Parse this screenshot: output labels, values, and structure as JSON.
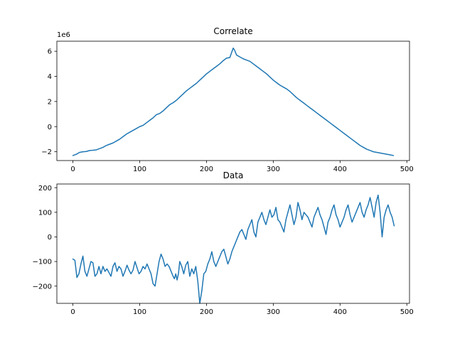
{
  "chart_data": [
    {
      "type": "line",
      "title": "Correlate",
      "xlabel": "",
      "ylabel": "",
      "xlim": [
        -24,
        504
      ],
      "ylim": [
        -2.7,
        6.8
      ],
      "y_scale_label": "1e6",
      "x_ticks": [
        0,
        100,
        200,
        300,
        400,
        500
      ],
      "x_tick_labels": [
        "0",
        "100",
        "200",
        "300",
        "400",
        "500"
      ],
      "y_ticks": [
        -2,
        0,
        2,
        4,
        6
      ],
      "y_tick_labels": [
        "−2",
        "0",
        "2",
        "4",
        "6"
      ],
      "grid": false,
      "color": "#1f77b4",
      "series": [
        {
          "x": [
            0,
            5,
            10,
            15,
            20,
            25,
            30,
            35,
            40,
            45,
            50,
            55,
            60,
            65,
            70,
            75,
            80,
            85,
            90,
            95,
            100,
            105,
            110,
            115,
            120,
            125,
            130,
            135,
            140,
            145,
            150,
            155,
            160,
            165,
            170,
            175,
            180,
            185,
            190,
            195,
            200,
            205,
            210,
            215,
            220,
            225,
            230,
            235,
            238,
            240,
            242,
            245,
            250,
            255,
            260,
            265,
            270,
            275,
            280,
            285,
            290,
            295,
            300,
            305,
            310,
            315,
            320,
            325,
            330,
            335,
            340,
            345,
            350,
            355,
            360,
            365,
            370,
            375,
            380,
            385,
            390,
            395,
            400,
            405,
            410,
            415,
            420,
            425,
            430,
            435,
            440,
            445,
            450,
            455,
            460,
            465,
            470,
            475,
            480
          ],
          "y": [
            -2.3,
            -2.2,
            -2.05,
            -2.0,
            -1.98,
            -1.9,
            -1.88,
            -1.85,
            -1.75,
            -1.65,
            -1.5,
            -1.4,
            -1.3,
            -1.15,
            -1.0,
            -0.8,
            -0.6,
            -0.45,
            -0.3,
            -0.15,
            0.0,
            0.1,
            0.3,
            0.5,
            0.7,
            0.95,
            1.05,
            1.25,
            1.5,
            1.75,
            1.9,
            2.1,
            2.35,
            2.6,
            2.85,
            3.05,
            3.25,
            3.45,
            3.7,
            3.95,
            4.2,
            4.4,
            4.6,
            4.8,
            5.0,
            5.25,
            5.45,
            5.5,
            5.95,
            6.25,
            6.1,
            5.7,
            5.55,
            5.4,
            5.3,
            5.2,
            5.0,
            4.8,
            4.6,
            4.4,
            4.2,
            3.95,
            3.7,
            3.5,
            3.3,
            3.15,
            3.0,
            2.8,
            2.55,
            2.3,
            2.1,
            1.9,
            1.7,
            1.5,
            1.3,
            1.1,
            0.9,
            0.7,
            0.5,
            0.3,
            0.1,
            -0.1,
            -0.3,
            -0.5,
            -0.7,
            -0.9,
            -1.1,
            -1.3,
            -1.5,
            -1.65,
            -1.8,
            -1.9,
            -2.0,
            -2.05,
            -2.1,
            -2.15,
            -2.2,
            -2.25,
            -2.3
          ]
        }
      ]
    },
    {
      "type": "line",
      "title": "Data",
      "xlabel": "",
      "ylabel": "",
      "xlim": [
        -24,
        504
      ],
      "ylim": [
        -270,
        215
      ],
      "x_ticks": [
        0,
        100,
        200,
        300,
        400,
        500
      ],
      "x_tick_labels": [
        "0",
        "100",
        "200",
        "300",
        "400",
        "500"
      ],
      "y_ticks": [
        -200,
        -100,
        0,
        100,
        200
      ],
      "y_tick_labels": [
        "−200",
        "−100",
        "0",
        "100",
        "200"
      ],
      "grid": false,
      "color": "#1f77b4",
      "series": [
        {
          "x": [
            0,
            3,
            6,
            9,
            12,
            15,
            18,
            21,
            24,
            27,
            30,
            33,
            36,
            39,
            42,
            45,
            48,
            51,
            54,
            57,
            60,
            63,
            66,
            69,
            72,
            75,
            78,
            81,
            84,
            87,
            90,
            93,
            96,
            99,
            102,
            105,
            108,
            111,
            114,
            117,
            120,
            123,
            126,
            129,
            132,
            135,
            138,
            141,
            144,
            147,
            150,
            152,
            154,
            156,
            158,
            160,
            163,
            166,
            169,
            172,
            175,
            178,
            181,
            184,
            187,
            190,
            193,
            196,
            199,
            202,
            205,
            208,
            211,
            214,
            217,
            220,
            223,
            226,
            229,
            232,
            235,
            238,
            241,
            244,
            247,
            250,
            253,
            256,
            259,
            262,
            265,
            268,
            271,
            274,
            277,
            280,
            283,
            286,
            289,
            292,
            295,
            298,
            301,
            304,
            307,
            310,
            313,
            316,
            319,
            322,
            325,
            328,
            331,
            334,
            337,
            340,
            343,
            346,
            349,
            352,
            355,
            358,
            361,
            364,
            367,
            370,
            373,
            376,
            379,
            382,
            385,
            388,
            391,
            394,
            397,
            400,
            403,
            406,
            409,
            412,
            415,
            418,
            421,
            424,
            427,
            430,
            433,
            436,
            439,
            442,
            445,
            448,
            451,
            454,
            457,
            460,
            463,
            466,
            469,
            472,
            475,
            478,
            481
          ],
          "y": [
            -90,
            -95,
            -165,
            -150,
            -110,
            -78,
            -140,
            -160,
            -130,
            -100,
            -105,
            -160,
            -150,
            -120,
            -150,
            -120,
            -140,
            -130,
            -145,
            -160,
            -120,
            -105,
            -140,
            -120,
            -130,
            -160,
            -140,
            -115,
            -135,
            -150,
            -135,
            -100,
            -125,
            -150,
            -140,
            -120,
            -130,
            -110,
            -130,
            -150,
            -190,
            -200,
            -150,
            -100,
            -70,
            -90,
            -120,
            -110,
            -120,
            -140,
            -160,
            -170,
            -150,
            -175,
            -150,
            -100,
            -120,
            -150,
            -115,
            -100,
            -160,
            -130,
            -150,
            -120,
            -180,
            -270,
            -220,
            -150,
            -140,
            -110,
            -90,
            -60,
            -100,
            -120,
            -100,
            -80,
            -60,
            -50,
            -80,
            -110,
            -90,
            -60,
            -40,
            -20,
            0,
            20,
            30,
            10,
            -10,
            30,
            50,
            70,
            20,
            0,
            60,
            80,
            100,
            70,
            50,
            80,
            110,
            80,
            90,
            120,
            70,
            60,
            40,
            20,
            70,
            100,
            130,
            90,
            50,
            80,
            140,
            110,
            70,
            100,
            90,
            80,
            60,
            40,
            80,
            100,
            120,
            90,
            70,
            40,
            10,
            60,
            80,
            110,
            130,
            90,
            70,
            40,
            60,
            80,
            110,
            130,
            90,
            60,
            80,
            100,
            120,
            140,
            100,
            80,
            110,
            130,
            160,
            120,
            80,
            140,
            170,
            100,
            0,
            80,
            110,
            130,
            100,
            80,
            45
          ]
        }
      ]
    }
  ]
}
